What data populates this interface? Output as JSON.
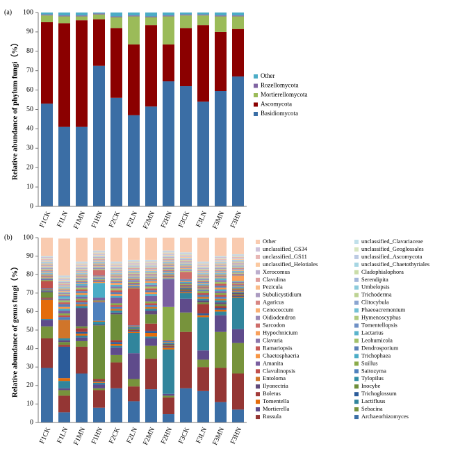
{
  "chart_data": [
    {
      "type": "bar",
      "stacked": true,
      "label": "(a)",
      "ylabel": "Relative abundance of phylum fungi（%）",
      "categories": [
        "F1CK",
        "F1LN",
        "F1MN",
        "F1HN",
        "F2CK",
        "F2LN",
        "F2MN",
        "F2HN",
        "F3CK",
        "F3LN",
        "F3MN",
        "F3HN"
      ],
      "ylim": [
        0,
        100
      ],
      "yticks": [
        0,
        10,
        20,
        30,
        40,
        50,
        60,
        70,
        80,
        90,
        100
      ],
      "series": [
        {
          "name": "Basidiomycota",
          "color": "#3b6ea5",
          "values": [
            53,
            41,
            41,
            72.5,
            56,
            47,
            51.5,
            64.5,
            62,
            54,
            59.5,
            67
          ]
        },
        {
          "name": "Ascomycota",
          "color": "#8b0000",
          "values": [
            42,
            53.5,
            55,
            24,
            36,
            36.5,
            42,
            19,
            30,
            39.5,
            30.5,
            24.5
          ]
        },
        {
          "name": "Mortierellomycota",
          "color": "#9bbb59",
          "values": [
            3.5,
            3.5,
            2,
            2.5,
            5.5,
            14.5,
            4,
            14.5,
            6.5,
            5,
            8,
            6.5
          ]
        },
        {
          "name": "Rozellomycota",
          "color": "#8064a2",
          "values": [
            0.5,
            0.5,
            0.5,
            0.5,
            0.5,
            0.5,
            0.5,
            0.5,
            0.5,
            0.5,
            0.5,
            0.5
          ]
        },
        {
          "name": "Other",
          "color": "#4bacc6",
          "values": [
            1,
            1.5,
            1.5,
            0.5,
            2,
            1.5,
            2,
            1.5,
            1,
            1,
            1.5,
            1.5
          ]
        }
      ]
    },
    {
      "type": "bar",
      "stacked": true,
      "label": "(b)",
      "ylabel": "Relative abundance of genus fungi（%）",
      "categories": [
        "F1CK",
        "F1LN",
        "F1MN",
        "F1HN",
        "F2CK",
        "F2LN",
        "F2MN",
        "F2HN",
        "F3CK",
        "F3LN",
        "F3MN",
        "F3HN"
      ],
      "ylim": [
        0,
        100
      ],
      "yticks": [
        0,
        10,
        20,
        30,
        40,
        50,
        60,
        70,
        80,
        90,
        100
      ],
      "series": [
        {
          "name": "Archaeorhizomyces",
          "color": "#3b6ea5",
          "values": [
            29.5,
            5.5,
            26.5,
            8,
            18.5,
            11.5,
            18,
            4.5,
            18.5,
            17,
            11,
            7
          ]
        },
        {
          "name": "Russula",
          "color": "#943634",
          "values": [
            16,
            9,
            14.5,
            9.5,
            14,
            8,
            16.5,
            9,
            30.5,
            13,
            18.5,
            19.5
          ]
        },
        {
          "name": "Sebacina",
          "color": "#77933c",
          "values": [
            6.5,
            3,
            3,
            1,
            4,
            4,
            7,
            1,
            10.5,
            4,
            19.5,
            16.5
          ]
        },
        {
          "name": "Mortierella",
          "color": "#5f4b8b",
          "values": [
            3.5,
            1,
            2,
            2,
            4,
            14,
            4,
            1,
            7.5,
            5,
            9,
            7.5
          ]
        },
        {
          "name": "Lactifluus",
          "color": "#31859c",
          "values": [
            0.5,
            4,
            1,
            1,
            1,
            11,
            1,
            24,
            3,
            18,
            2,
            17
          ]
        },
        {
          "name": "Tomentella",
          "color": "#e46c0a",
          "values": [
            10.5,
            1.5,
            1,
            0.5,
            1,
            0.5,
            2,
            1,
            0.5,
            1,
            1,
            0.5
          ]
        },
        {
          "name": "Trichoglossum",
          "color": "#2c5c9a",
          "values": [
            0.5,
            17,
            1,
            0.5,
            1,
            0.5,
            1,
            0.5,
            0.5,
            1,
            1,
            0.5
          ]
        },
        {
          "name": "Boletus",
          "color": "#a33c3a",
          "values": [
            0.5,
            1,
            2,
            1,
            1,
            0.5,
            4,
            0.5,
            0.5,
            5,
            1,
            0.5
          ]
        },
        {
          "name": "Inocybe",
          "color": "#6e8e3a",
          "values": [
            3,
            1.5,
            1,
            29,
            14,
            0.5,
            5,
            0.5,
            0.5,
            1,
            1,
            0.5
          ]
        },
        {
          "name": "Ilyonectria",
          "color": "#604a7b",
          "values": [
            0.5,
            1,
            10,
            0.5,
            1,
            0.5,
            2,
            0.5,
            0.5,
            1,
            1,
            0.5
          ]
        },
        {
          "name": "Tylopilus",
          "color": "#2e8ea5",
          "values": [
            0.5,
            1,
            1,
            1.5,
            1,
            0.5,
            1,
            0.5,
            0.5,
            1,
            1,
            0.5
          ]
        },
        {
          "name": "Entoloma",
          "color": "#d0752a",
          "values": [
            0.5,
            10,
            1,
            0.5,
            1,
            0.5,
            1,
            0.5,
            0.5,
            1,
            1,
            0.5
          ]
        },
        {
          "name": "Saitozyma",
          "color": "#4f81bd",
          "values": [
            0.5,
            1.5,
            1,
            10,
            1,
            0.5,
            1,
            0.5,
            0.5,
            1,
            1,
            0.5
          ]
        },
        {
          "name": "Clavulinopsis",
          "color": "#c0504d",
          "values": [
            4,
            1,
            1,
            0.5,
            1,
            20,
            1,
            0.5,
            0.5,
            1,
            1,
            0.5
          ]
        },
        {
          "name": "Suillus",
          "color": "#8aab4a",
          "values": [
            0.5,
            1,
            1,
            0.5,
            1,
            0.5,
            1,
            18,
            0.5,
            1,
            1,
            0.5
          ]
        },
        {
          "name": "Amanita",
          "color": "#7a5fa0",
          "values": [
            0.5,
            1.5,
            1,
            1.5,
            3,
            0.5,
            3,
            15,
            0.5,
            0.5,
            1,
            0.5
          ]
        },
        {
          "name": "Trichophaea",
          "color": "#4bacc6",
          "values": [
            0.5,
            1,
            1,
            8,
            1,
            0.5,
            1,
            0.5,
            0.5,
            0.5,
            1,
            0.5
          ]
        },
        {
          "name": "Chaetosphaeria",
          "color": "#f79646",
          "values": [
            0.5,
            1,
            1,
            0.5,
            1,
            0.5,
            1,
            0.5,
            0.5,
            0.5,
            1,
            0.5
          ]
        },
        {
          "name": "Dendrosporium",
          "color": "#5b7fb5",
          "values": [
            0,
            1.5,
            1,
            0.5,
            1,
            0.5,
            1,
            0.5,
            0.5,
            0.5,
            1,
            0.5
          ]
        },
        {
          "name": "Ramariopsis",
          "color": "#c65a57",
          "values": [
            0,
            1,
            1,
            0.5,
            1,
            0.5,
            1,
            0.5,
            0,
            0.5,
            1,
            0.5
          ]
        },
        {
          "name": "Leohumicola",
          "color": "#a2c06a",
          "values": [
            0,
            1,
            1,
            0.5,
            1,
            0.5,
            1,
            0.5,
            0,
            0.5,
            1,
            0.5
          ]
        },
        {
          "name": "Clavaria",
          "color": "#8b76ab",
          "values": [
            0,
            1,
            1,
            0.5,
            1,
            0.5,
            1,
            0.5,
            0,
            0.5,
            1,
            0.5
          ]
        },
        {
          "name": "Lactarius",
          "color": "#5ab4cc",
          "values": [
            0,
            1,
            1,
            0.5,
            1,
            0,
            1,
            0.5,
            0,
            0.5,
            1,
            0.5
          ]
        },
        {
          "name": "Hypochnicium",
          "color": "#f8a05c",
          "values": [
            0,
            0,
            0.5,
            0.5,
            1,
            0,
            1,
            0.5,
            0,
            0.5,
            0.5,
            3
          ]
        },
        {
          "name": "Tomentellopsis",
          "color": "#6f90c5",
          "values": [
            0.5,
            0.5,
            0.5,
            0.5,
            0.5,
            0.5,
            0.5,
            0.5,
            0.5,
            0.5,
            0.5,
            0.5
          ]
        },
        {
          "name": "Sarcodon",
          "color": "#cd6d6a",
          "values": [
            0.5,
            0.5,
            0.5,
            3,
            0.5,
            0.5,
            0.5,
            0.5,
            4,
            0.5,
            0.5,
            0.5
          ]
        },
        {
          "name": "Hymenoscyphus",
          "color": "#b0ca7e",
          "values": [
            0.5,
            0.5,
            0.5,
            0.5,
            0.5,
            0.5,
            0.5,
            0.5,
            0.5,
            0.5,
            0.5,
            0.5
          ]
        },
        {
          "name": "Oidiodendron",
          "color": "#9a88b5",
          "values": [
            0.5,
            0.5,
            0.5,
            0.5,
            0.5,
            0.5,
            0.5,
            0.5,
            0.5,
            0.5,
            0.5,
            0.5
          ]
        },
        {
          "name": "Phaeoacremonium",
          "color": "#72c0d4",
          "values": [
            0.5,
            0.5,
            0.5,
            0.5,
            0.5,
            0.5,
            0.5,
            0.5,
            0.5,
            0.5,
            0.5,
            0.5
          ]
        },
        {
          "name": "Cenococcum",
          "color": "#f9ae72",
          "values": [
            0.5,
            0.5,
            0.5,
            0.5,
            0.5,
            0.5,
            0.5,
            0.5,
            0.5,
            0.5,
            0.5,
            0.5
          ]
        },
        {
          "name": "Clitocybula",
          "color": "#8aa5d0",
          "values": [
            0.5,
            0.5,
            0.5,
            0.5,
            0.5,
            0.5,
            0.5,
            0.5,
            0.5,
            0.5,
            0.5,
            0.5
          ]
        },
        {
          "name": "Agaricus",
          "color": "#d78683",
          "values": [
            0.5,
            0.5,
            0.5,
            0.5,
            0.5,
            0.5,
            0.5,
            0.5,
            0.5,
            0.5,
            0.5,
            0.5
          ]
        },
        {
          "name": "Trichoderma",
          "color": "#bdd393",
          "values": [
            0.5,
            0.5,
            0.5,
            0.5,
            0.5,
            0.5,
            0.5,
            0.5,
            0.5,
            0.5,
            0.5,
            0.5
          ]
        },
        {
          "name": "Subulicystidium",
          "color": "#ab9bc1",
          "values": [
            0.5,
            0.5,
            0.5,
            0.5,
            0.5,
            0.5,
            0.5,
            0.5,
            0.5,
            0.5,
            0.5,
            0.5
          ]
        },
        {
          "name": "Umbelopsis",
          "color": "#8ccbdb",
          "values": [
            0.5,
            0.5,
            0.5,
            0.5,
            0.5,
            0.5,
            0.5,
            0.5,
            0.5,
            0.5,
            0.5,
            0.5
          ]
        },
        {
          "name": "Pezicula",
          "color": "#fabb88",
          "values": [
            0.5,
            0.5,
            0.5,
            0.5,
            0.5,
            0.5,
            0.5,
            0.5,
            0.5,
            0.5,
            0.5,
            0.5
          ]
        },
        {
          "name": "Serendipita",
          "color": "#a3b7da",
          "values": [
            0.5,
            0.5,
            0.5,
            0.5,
            0.5,
            0.5,
            0.5,
            0.5,
            0.5,
            0.5,
            0.5,
            0.5
          ]
        },
        {
          "name": "Clavulina",
          "color": "#df9e9c",
          "values": [
            0.5,
            0.5,
            0.5,
            0.5,
            0.5,
            0.5,
            0.5,
            0.5,
            0.5,
            0.5,
            0.5,
            0.5
          ]
        },
        {
          "name": "Cladophialophora",
          "color": "#cadda9",
          "values": [
            0.5,
            0.5,
            0.5,
            0.5,
            0.5,
            0.5,
            0.5,
            0.5,
            0.5,
            0.5,
            0.5,
            0.5
          ]
        },
        {
          "name": "Xerocomus",
          "color": "#bcaecd",
          "values": [
            0.5,
            0.5,
            0.5,
            0.5,
            0.5,
            0.5,
            0.5,
            0.5,
            0.5,
            0.5,
            0.5,
            0.5
          ]
        },
        {
          "name": "unclassified_Chaetothyriales",
          "color": "#a6d6e3",
          "values": [
            0.5,
            0.5,
            0.5,
            0.5,
            0.5,
            0.5,
            0.5,
            0.5,
            0.5,
            0.5,
            0.5,
            0.5
          ]
        },
        {
          "name": "unclassified_Helotiales",
          "color": "#fbc9a0",
          "values": [
            0.5,
            0.5,
            0.5,
            0.5,
            0.5,
            0.5,
            0.5,
            0.5,
            0.5,
            0.5,
            0.5,
            0.5
          ]
        },
        {
          "name": "unclassified_Ascomycota",
          "color": "#bccae3",
          "values": [
            0.5,
            0.5,
            0.5,
            0.5,
            0.5,
            0.5,
            0.5,
            0.5,
            0.5,
            0.5,
            0.5,
            0.5
          ]
        },
        {
          "name": "unclassified_GS11",
          "color": "#e8b7b5",
          "values": [
            0.5,
            0.5,
            0.5,
            0.5,
            0.5,
            0.5,
            0.5,
            0.5,
            0.5,
            0.5,
            0.5,
            0.5
          ]
        },
        {
          "name": "unclassified_Geoglossales",
          "color": "#d7e6bf",
          "values": [
            0.5,
            0.5,
            0.5,
            0.5,
            0.5,
            0.5,
            0.5,
            0.5,
            0.5,
            0.5,
            0.5,
            0.5
          ]
        },
        {
          "name": "unclassified_GS34",
          "color": "#cdc1da",
          "values": [
            0.5,
            0.5,
            0.5,
            0.5,
            0.5,
            0.5,
            0.5,
            0.5,
            0.5,
            0.5,
            0.5,
            0.5
          ]
        },
        {
          "name": "unclassified_Clavariaceae",
          "color": "#c0e0ea",
          "values": [
            0.5,
            0.5,
            0.5,
            0.5,
            0.5,
            0.5,
            0.5,
            0.5,
            0.5,
            0.5,
            0.5,
            0.5
          ]
        },
        {
          "name": "Other",
          "color": "#f9cbb0",
          "values": [
            10,
            20,
            13,
            7,
            13,
            12,
            12,
            7,
            8,
            13,
            10,
            9
          ]
        }
      ]
    }
  ]
}
